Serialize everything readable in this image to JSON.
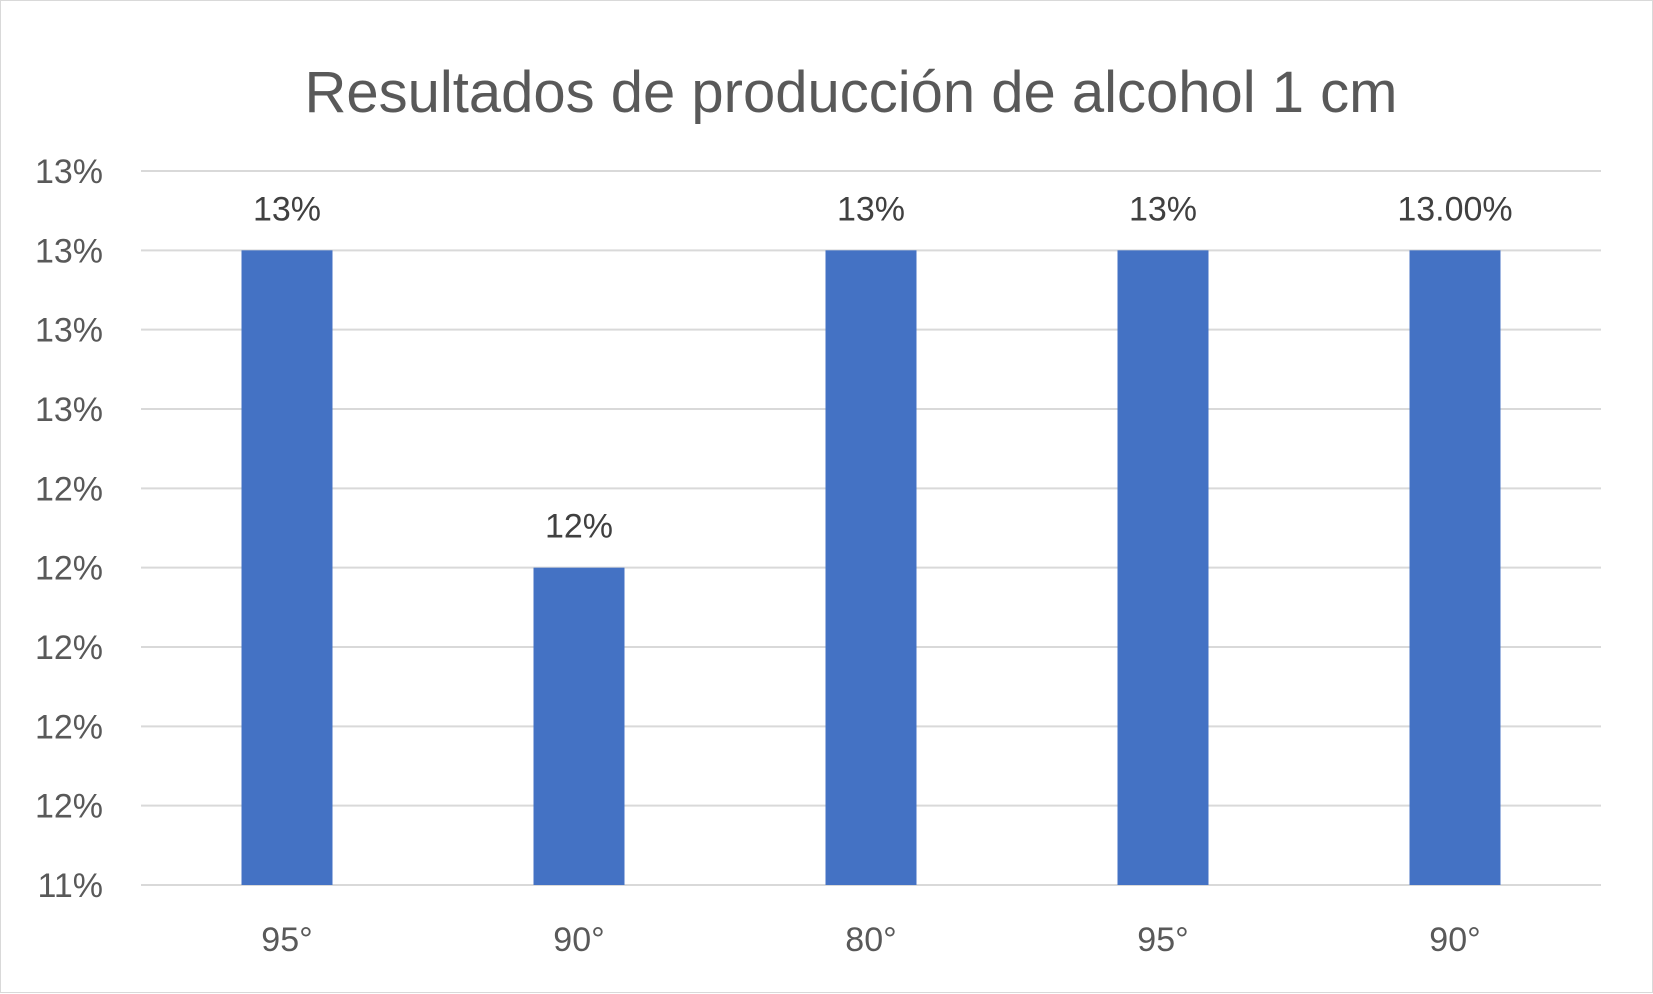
{
  "chart_data": {
    "type": "bar",
    "title": "Resultados de producción de alcohol 1 cm",
    "xlabel": "",
    "ylabel": "",
    "categories": [
      "95°",
      "90°",
      "80°",
      "95°",
      "90°"
    ],
    "series": [
      {
        "values": [
          0.13,
          0.122,
          0.13,
          0.13,
          0.13
        ],
        "data_labels": [
          "13%",
          "12%",
          "13%",
          "13%",
          "13.00%"
        ]
      }
    ],
    "ylim": [
      0.114,
      0.132
    ],
    "y_ticks": [
      0.114,
      0.116,
      0.118,
      0.12,
      0.122,
      0.124,
      0.126,
      0.128,
      0.13,
      0.132
    ],
    "y_tick_labels": [
      "11%",
      "12%",
      "12%",
      "12%",
      "12%",
      "12%",
      "13%",
      "13%",
      "13%",
      "13%"
    ],
    "grid": true,
    "legend": "none",
    "bar_color": "#4472c4"
  }
}
